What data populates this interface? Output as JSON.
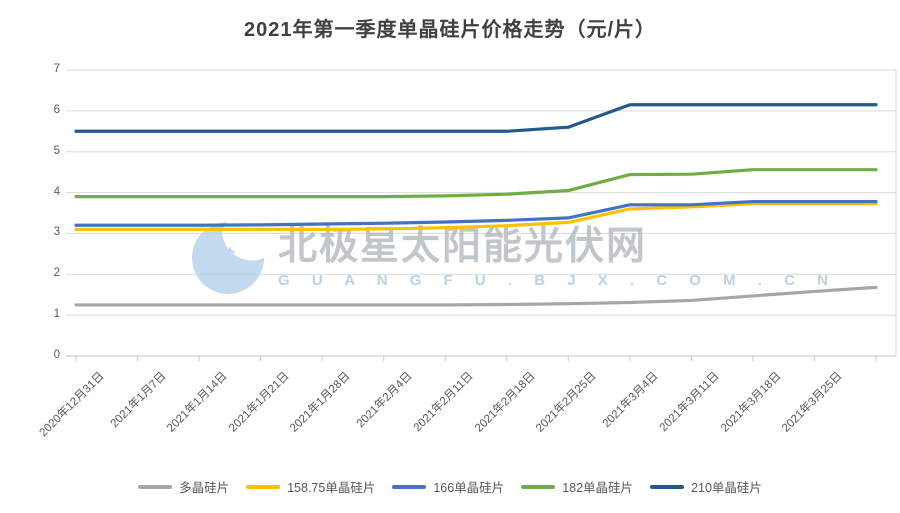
{
  "title_color": "#404040",
  "axes": {
    "grid_color": "#d9d9d9",
    "axis_color": "#c6c6c6",
    "tick_color": "#c6c6c6",
    "label_color": "#595959"
  },
  "watermark": {
    "logo_icon": "bjx-star-moon-logo",
    "logo_color": "#b9d3ea",
    "text": "北极星太阳能光伏网",
    "subtext": "G U A N G F U . B J X . C O M . C N",
    "text_color": "#b2b8bf",
    "subtext_color": "#bccfdd"
  },
  "chart_data": {
    "type": "line",
    "title": "2021年第一季度单晶硅片价格走势（元/片）",
    "xlabel": "",
    "ylabel": "",
    "ylim": [
      0,
      7
    ],
    "y_ticks": [
      0,
      1,
      2,
      3,
      4,
      5,
      6,
      7
    ],
    "grid": true,
    "legend_position": "bottom",
    "categories": [
      "2020年12月31日",
      "2021年1月7日",
      "2021年1月14日",
      "2021年1月21日",
      "2021年1月28日",
      "2021年2月4日",
      "2021年2月11日",
      "2021年2月18日",
      "2021年2月25日",
      "2021年3月4日",
      "2021年3月11日",
      "2021年3月18日",
      "2021年3月25日",
      ""
    ],
    "series": [
      {
        "name": "多晶硅片",
        "color": "#a6a6a6",
        "values": [
          1.25,
          1.25,
          1.25,
          1.25,
          1.25,
          1.25,
          1.25,
          1.26,
          1.28,
          1.31,
          1.36,
          1.47,
          1.58,
          1.68
        ]
      },
      {
        "name": "158.75单晶硅片",
        "color": "#ffc000",
        "values": [
          3.1,
          3.1,
          3.1,
          3.1,
          3.1,
          3.11,
          3.14,
          3.19,
          3.27,
          3.6,
          3.65,
          3.73,
          3.73,
          3.73
        ]
      },
      {
        "name": "166单晶硅片",
        "color": "#4472c4",
        "values": [
          3.2,
          3.2,
          3.2,
          3.21,
          3.23,
          3.25,
          3.28,
          3.32,
          3.38,
          3.7,
          3.7,
          3.78,
          3.78,
          3.78
        ]
      },
      {
        "name": "182单晶硅片",
        "color": "#70ad47",
        "values": [
          3.9,
          3.9,
          3.9,
          3.9,
          3.9,
          3.9,
          3.92,
          3.96,
          4.05,
          4.44,
          4.45,
          4.56,
          4.56,
          4.56
        ]
      },
      {
        "name": "210单晶硅片",
        "color": "#25598c",
        "values": [
          5.5,
          5.5,
          5.5,
          5.5,
          5.5,
          5.5,
          5.5,
          5.5,
          5.6,
          6.15,
          6.15,
          6.15,
          6.15,
          6.15
        ]
      }
    ]
  }
}
